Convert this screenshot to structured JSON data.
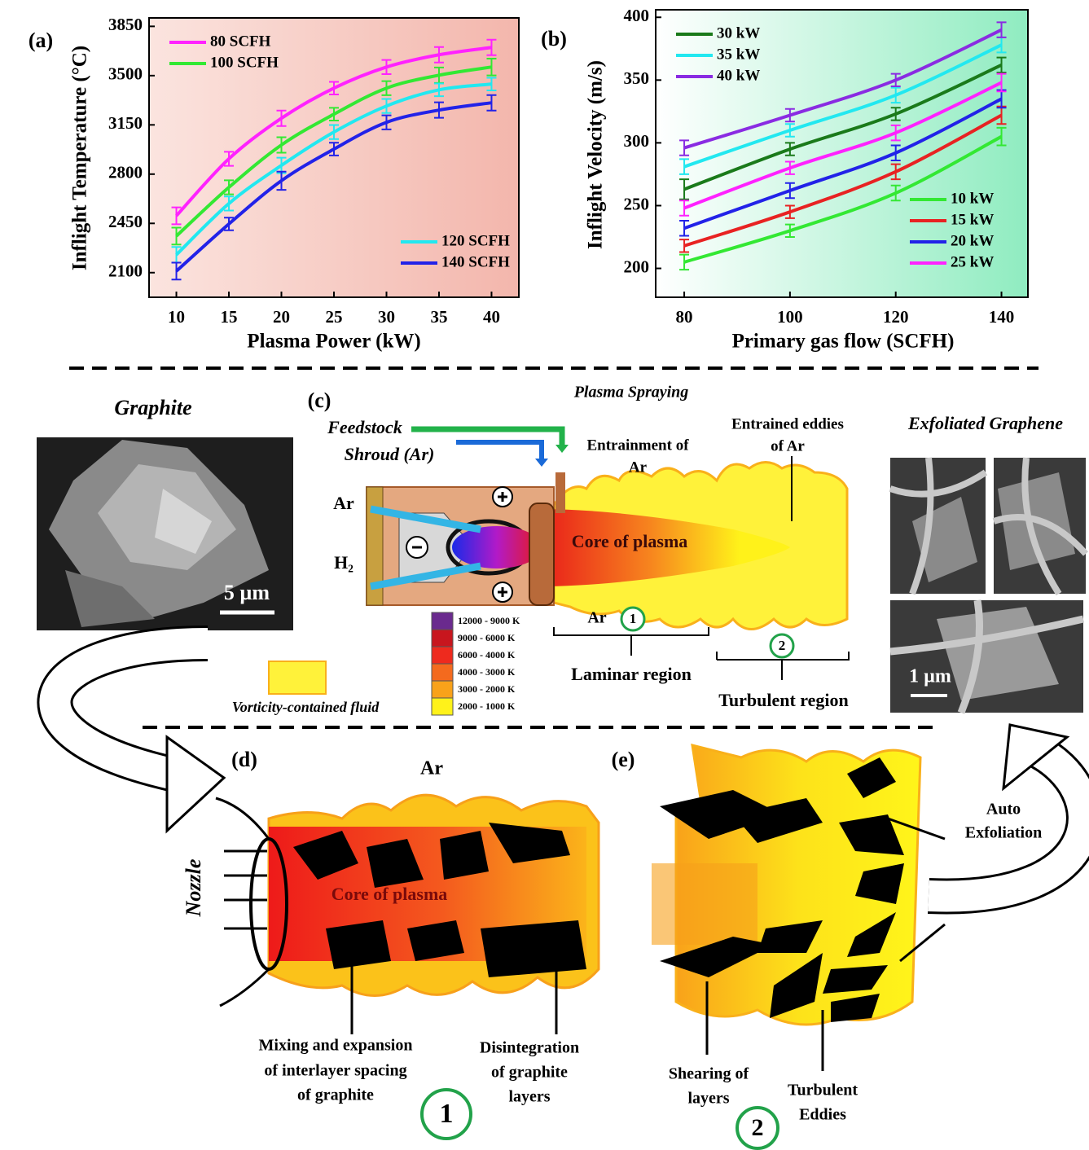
{
  "chart_data": [
    {
      "type": "line",
      "panel_label": "(a)",
      "x_label": "Plasma Power (kW)",
      "y_label": "Inflight Temperature (°C)",
      "x": [
        10,
        15,
        20,
        25,
        30,
        35,
        40
      ],
      "xlim": [
        7.4,
        42.6
      ],
      "xticks": [
        10,
        15,
        20,
        25,
        30,
        35,
        40
      ],
      "ylim": [
        1925,
        3910
      ],
      "yticks": [
        2100,
        2450,
        2800,
        3150,
        3500,
        3850
      ],
      "series": [
        {
          "name": "80 SCFH",
          "color": "#ff22ff",
          "legend": "upper left",
          "values": [
            2504,
            2909,
            3197,
            3411,
            3561,
            3648,
            3700
          ],
          "errors": [
            60,
            50,
            55,
            45,
            50,
            55,
            55
          ]
        },
        {
          "name": "100 SCFH",
          "color": "#33e833",
          "legend": "upper left",
          "values": [
            2360,
            2706,
            3007,
            3226,
            3411,
            3503,
            3561
          ],
          "errors": [
            60,
            50,
            55,
            45,
            50,
            55,
            60
          ]
        },
        {
          "name": "120 SCFH",
          "color": "#22e8f0",
          "legend": "lower right",
          "values": [
            2227,
            2591,
            2862,
            3099,
            3284,
            3399,
            3440
          ],
          "errors": [
            55,
            50,
            55,
            50,
            50,
            45,
            45
          ]
        },
        {
          "name": "140 SCFH",
          "color": "#2222e8",
          "legend": "lower right",
          "values": [
            2111,
            2446,
            2753,
            2978,
            3168,
            3255,
            3307
          ],
          "errors": [
            60,
            45,
            65,
            45,
            50,
            55,
            55
          ]
        }
      ]
    },
    {
      "type": "line",
      "panel_label": "(b)",
      "x_label": "Primary gas flow (SCFH)",
      "y_label": "Inflight Velocity (m/s)",
      "x": [
        80,
        100,
        120,
        140
      ],
      "xlim": [
        74.6,
        145
      ],
      "xticks": [
        80,
        100,
        120,
        140
      ],
      "ylim": [
        177,
        406
      ],
      "yticks": [
        200,
        250,
        300,
        350,
        400
      ],
      "series": [
        {
          "name": "30 kW",
          "color": "#1a7a1a",
          "legend": "upper left",
          "values": [
            263,
            295,
            323,
            362
          ],
          "errors": [
            8,
            5,
            5,
            6
          ]
        },
        {
          "name": "35 kW",
          "color": "#22e8f0",
          "legend": "upper left",
          "values": [
            281,
            310,
            338,
            378
          ],
          "errors": [
            6,
            5,
            6,
            6
          ]
        },
        {
          "name": "40 kW",
          "color": "#8a2be2",
          "legend": "upper left",
          "values": [
            296,
            322,
            350,
            390
          ],
          "errors": [
            6,
            5,
            5,
            6
          ]
        },
        {
          "name": "10 kW",
          "color": "#33e833",
          "legend": "lower right",
          "values": [
            205,
            230,
            260,
            305
          ],
          "errors": [
            6,
            5,
            6,
            7
          ]
        },
        {
          "name": "15 kW",
          "color": "#e82222",
          "legend": "lower right",
          "values": [
            218,
            245,
            277,
            322
          ],
          "errors": [
            5,
            5,
            6,
            7
          ]
        },
        {
          "name": "20 kW",
          "color": "#2222e8",
          "legend": "lower right",
          "values": [
            232,
            262,
            292,
            335
          ],
          "errors": [
            6,
            6,
            6,
            7
          ]
        },
        {
          "name": "25 kW",
          "color": "#ff22ff",
          "legend": "lower right",
          "values": [
            248,
            280,
            308,
            348
          ],
          "errors": [
            6,
            5,
            6,
            7
          ]
        }
      ]
    }
  ],
  "graphite": {
    "title": "Graphite",
    "scale_bar": "5 µm"
  },
  "plasma": {
    "panel_label": "(c)",
    "title": "Plasma Spraying",
    "feedstock": "Feedstock",
    "shroud": "Shroud (Ar)",
    "entrainment": [
      "Entrainment of",
      "Ar"
    ],
    "eddies": [
      "Entrained eddies",
      "of Ar"
    ],
    "ar_inlet": "Ar",
    "h2_inlet": "H₂",
    "core": "Core of plasma",
    "ar_outer": "Ar",
    "region_1": "1",
    "region_2": "2",
    "laminar": "Laminar region",
    "turbulent": "Turbulent region",
    "temperature_legend": [
      {
        "label": "12000 - 9000 K",
        "color": "#6a2a8e"
      },
      {
        "label": "9000 - 6000 K",
        "color": "#c8161e"
      },
      {
        "label": "6000 - 4000 K",
        "color": "#ee2a1e"
      },
      {
        "label": "4000 - 3000 K",
        "color": "#f46a1e"
      },
      {
        "label": "3000 - 2000 K",
        "color": "#f9a21a"
      },
      {
        "label": "2000 - 1000 K",
        "color": "#fff21a"
      }
    ],
    "vorticity": "Vorticity-contained fluid"
  },
  "graphene": {
    "title": "Exfoliated Graphene",
    "scale_bar": "1 µm"
  },
  "panel_d": {
    "panel_label": "(d)",
    "ar": "Ar",
    "nozzle": "Nozzle",
    "core": "Core of plasma",
    "mixing": [
      "Mixing and expansion",
      "of interlayer spacing",
      "of graphite"
    ],
    "disintegration": [
      "Disintegration",
      "of graphite",
      "layers"
    ],
    "region": "1"
  },
  "panel_e": {
    "panel_label": "(e)",
    "auto": [
      "Auto",
      "Exfoliation"
    ],
    "shearing": [
      "Shearing of",
      "layers"
    ],
    "eddies": [
      "Turbulent",
      "Eddies"
    ],
    "region": "2"
  }
}
